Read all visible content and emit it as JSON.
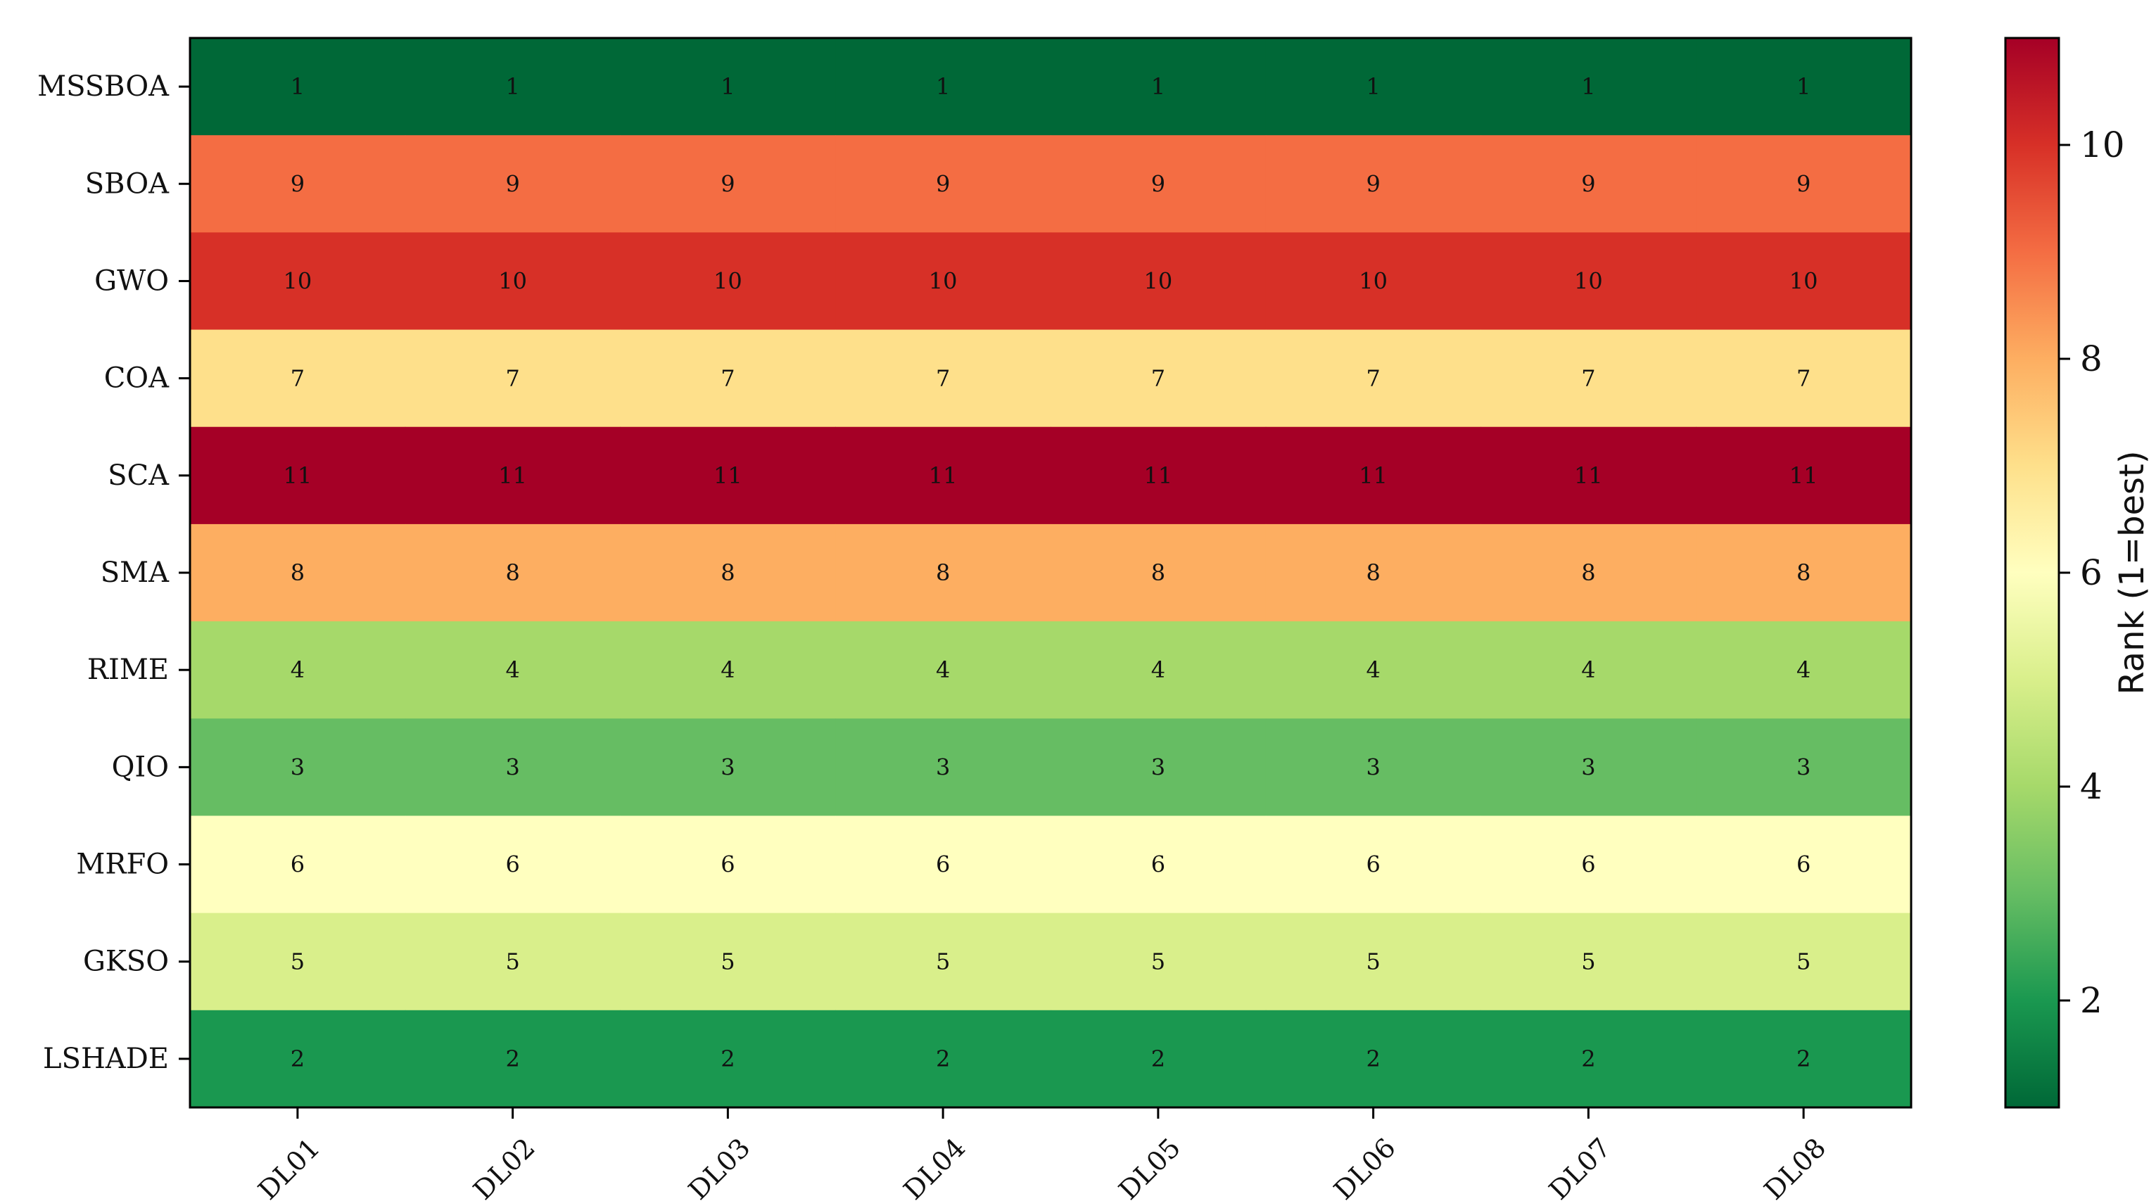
{
  "chart_data": {
    "type": "heatmap",
    "rows": [
      "MSSBOA",
      "SBOA",
      "GWO",
      "COA",
      "SCA",
      "SMA",
      "RIME",
      "QIO",
      "MRFO",
      "GKSO",
      "LSHADE"
    ],
    "columns": [
      "DL01",
      "DL02",
      "DL03",
      "DL04",
      "DL05",
      "DL06",
      "DL07",
      "DL08"
    ],
    "values": [
      [
        1,
        1,
        1,
        1,
        1,
        1,
        1,
        1
      ],
      [
        9,
        9,
        9,
        9,
        9,
        9,
        9,
        9
      ],
      [
        10,
        10,
        10,
        10,
        10,
        10,
        10,
        10
      ],
      [
        7,
        7,
        7,
        7,
        7,
        7,
        7,
        7
      ],
      [
        11,
        11,
        11,
        11,
        11,
        11,
        11,
        11
      ],
      [
        8,
        8,
        8,
        8,
        8,
        8,
        8,
        8
      ],
      [
        4,
        4,
        4,
        4,
        4,
        4,
        4,
        4
      ],
      [
        3,
        3,
        3,
        3,
        3,
        3,
        3,
        3
      ],
      [
        6,
        6,
        6,
        6,
        6,
        6,
        6,
        6
      ],
      [
        5,
        5,
        5,
        5,
        5,
        5,
        5,
        5
      ],
      [
        2,
        2,
        2,
        2,
        2,
        2,
        2,
        2
      ]
    ],
    "colormap": "RdYlGn_r",
    "colorbar": {
      "label": "Rank (1=best)",
      "range": [
        1,
        11
      ],
      "ticks": [
        2,
        4,
        6,
        8,
        10
      ],
      "tick_labels": [
        "2",
        "4",
        "6",
        "8",
        "10"
      ]
    },
    "title": "",
    "xlabel": "",
    "ylabel": ""
  }
}
